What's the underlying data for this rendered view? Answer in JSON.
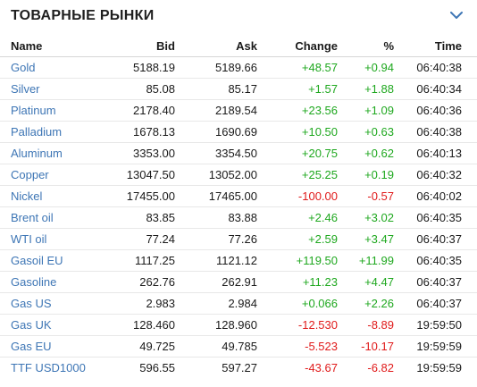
{
  "header": {
    "title": "ТОВАРНЫЕ РЫНКИ",
    "toggle_icon": "chevron-down-icon"
  },
  "columns": {
    "name": "Name",
    "bid": "Bid",
    "ask": "Ask",
    "change": "Change",
    "pct": "%",
    "time": "Time"
  },
  "colors": {
    "link": "#3e76b5",
    "positive": "#1fa81f",
    "negative": "#e01b1b"
  },
  "rows": [
    {
      "name": "Gold",
      "bid": "5188.19",
      "ask": "5189.66",
      "change": "+48.57",
      "pct": "+0.94",
      "time": "06:40:38",
      "dir": "pos"
    },
    {
      "name": "Silver",
      "bid": "85.08",
      "ask": "85.17",
      "change": "+1.57",
      "pct": "+1.88",
      "time": "06:40:34",
      "dir": "pos"
    },
    {
      "name": "Platinum",
      "bid": "2178.40",
      "ask": "2189.54",
      "change": "+23.56",
      "pct": "+1.09",
      "time": "06:40:36",
      "dir": "pos"
    },
    {
      "name": "Palladium",
      "bid": "1678.13",
      "ask": "1690.69",
      "change": "+10.50",
      "pct": "+0.63",
      "time": "06:40:38",
      "dir": "pos"
    },
    {
      "name": "Aluminum",
      "bid": "3353.00",
      "ask": "3354.50",
      "change": "+20.75",
      "pct": "+0.62",
      "time": "06:40:13",
      "dir": "pos"
    },
    {
      "name": "Copper",
      "bid": "13047.50",
      "ask": "13052.00",
      "change": "+25.25",
      "pct": "+0.19",
      "time": "06:40:32",
      "dir": "pos"
    },
    {
      "name": "Nickel",
      "bid": "17455.00",
      "ask": "17465.00",
      "change": "-100.00",
      "pct": "-0.57",
      "time": "06:40:02",
      "dir": "neg"
    },
    {
      "name": "Brent oil",
      "bid": "83.85",
      "ask": "83.88",
      "change": "+2.46",
      "pct": "+3.02",
      "time": "06:40:35",
      "dir": "pos"
    },
    {
      "name": "WTI oil",
      "bid": "77.24",
      "ask": "77.26",
      "change": "+2.59",
      "pct": "+3.47",
      "time": "06:40:37",
      "dir": "pos"
    },
    {
      "name": "Gasoil EU",
      "bid": "1117.25",
      "ask": "1121.12",
      "change": "+119.50",
      "pct": "+11.99",
      "time": "06:40:35",
      "dir": "pos"
    },
    {
      "name": "Gasoline",
      "bid": "262.76",
      "ask": "262.91",
      "change": "+11.23",
      "pct": "+4.47",
      "time": "06:40:37",
      "dir": "pos"
    },
    {
      "name": "Gas US",
      "bid": "2.983",
      "ask": "2.984",
      "change": "+0.066",
      "pct": "+2.26",
      "time": "06:40:37",
      "dir": "pos"
    },
    {
      "name": "Gas UK",
      "bid": "128.460",
      "ask": "128.960",
      "change": "-12.530",
      "pct": "-8.89",
      "time": "19:59:50",
      "dir": "neg"
    },
    {
      "name": "Gas EU",
      "bid": "49.725",
      "ask": "49.785",
      "change": "-5.523",
      "pct": "-10.17",
      "time": "19:59:59",
      "dir": "neg"
    },
    {
      "name": "TTF USD1000",
      "bid": "596.55",
      "ask": "597.27",
      "change": "-43.67",
      "pct": "-6.82",
      "time": "19:59:59",
      "dir": "neg"
    }
  ]
}
